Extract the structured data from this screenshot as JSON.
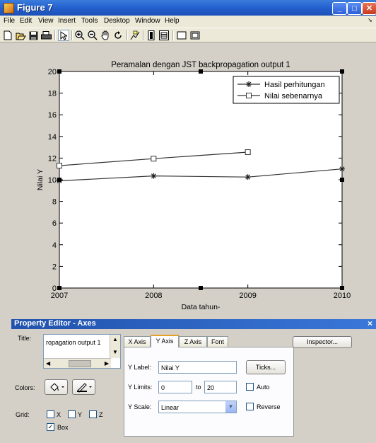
{
  "window": {
    "title": "Figure 7"
  },
  "menu": [
    "File",
    "Edit",
    "View",
    "Insert",
    "Tools",
    "Desktop",
    "Window",
    "Help"
  ],
  "toolbar_icons": [
    "new-figure-icon",
    "open-file-icon",
    "save-icon",
    "print-icon",
    "edit-plot-icon",
    "zoom-in-icon",
    "zoom-out-icon",
    "pan-icon",
    "rotate-3d-icon",
    "data-cursor-icon",
    "colorbar-icon",
    "legend-icon",
    "hide-plot-tools-icon",
    "show-plot-tools-icon"
  ],
  "chart_data": {
    "type": "line",
    "title": "Peramalan dengan JST backpropagation output 1",
    "xlabel": "Data tahun-",
    "ylabel": "Nilai Y",
    "xlim": [
      2007,
      2010
    ],
    "ylim": [
      0,
      20
    ],
    "xticks": [
      "2007",
      "2008",
      "2009",
      "2010"
    ],
    "yticks": [
      "0",
      "2",
      "4",
      "6",
      "8",
      "10",
      "12",
      "14",
      "16",
      "18",
      "20"
    ],
    "legend_position": "top-right",
    "series": [
      {
        "name": "Hasil perhitungan",
        "marker": "asterisk",
        "x": [
          2007,
          2008,
          2009,
          2010
        ],
        "y": [
          9.9,
          10.35,
          10.25,
          11.0
        ]
      },
      {
        "name": "Nilai sebenarnya",
        "marker": "square",
        "x": [
          2007,
          2008,
          2009
        ],
        "y": [
          11.3,
          11.95,
          12.55
        ]
      }
    ]
  },
  "property_editor": {
    "header": "Property Editor - Axes",
    "close_glyph": "×",
    "title_label": "Title:",
    "title_value": "ropagation output 1",
    "colors_label": "Colors:",
    "grid_label": "Grid:",
    "grid_x": "X",
    "grid_y": "Y",
    "grid_z": "Z",
    "box_label": "Box",
    "tabs": [
      "X Axis",
      "Y Axis",
      "Z Axis",
      "Font"
    ],
    "ylabel_label": "Y Label:",
    "ylabel_value": "Nilai Y",
    "ticks_button": "Ticks...",
    "ylimits_label": "Y Limits:",
    "ylim_from": "0",
    "ylim_to_label": "to",
    "ylim_to": "20",
    "auto_label": "Auto",
    "yscale_label": "Y Scale:",
    "yscale_value": "Linear",
    "reverse_label": "Reverse",
    "inspector_button": "Inspector..."
  }
}
